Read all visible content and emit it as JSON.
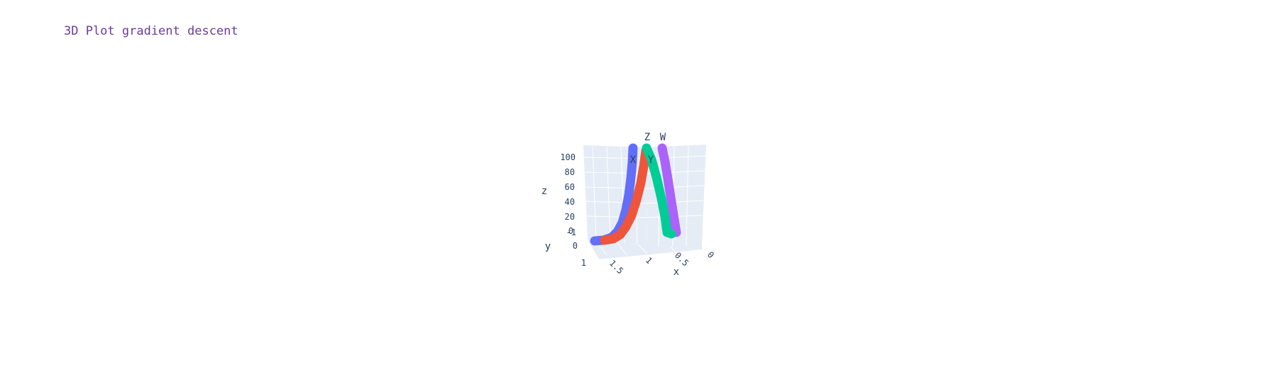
{
  "chart_data": {
    "type": "scatter",
    "title": "3D Plot gradient descent",
    "axes": {
      "x": {
        "label": "x",
        "ticks": [
          "0",
          "0.5",
          "1",
          "1.5"
        ]
      },
      "y": {
        "label": "y",
        "ticks": [
          "1",
          "0",
          "-1"
        ]
      },
      "z": {
        "label": "z",
        "ticks": [
          "0",
          "20",
          "40",
          "60",
          "80",
          "100"
        ]
      }
    },
    "zlim": [
      0,
      100
    ],
    "grid": true,
    "legend": "none",
    "series": [
      {
        "name": "X",
        "color": "#636efa"
      },
      {
        "name": "Y",
        "color": "#ef553b"
      },
      {
        "name": "Z",
        "color": "#00cc96"
      },
      {
        "name": "W",
        "color": "#ab63fa"
      }
    ]
  }
}
